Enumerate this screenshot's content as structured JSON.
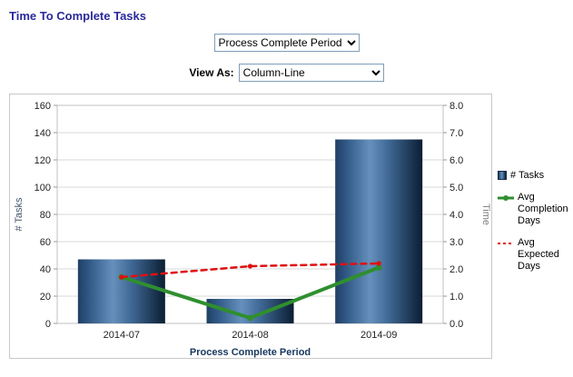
{
  "page": {
    "title": "Time To Complete Tasks",
    "title_color": "#29299a"
  },
  "controls": {
    "period_select": {
      "value": "Process Complete Period"
    },
    "view_as_label": "View As:",
    "view_as_select": {
      "value": "Column-Line"
    }
  },
  "colors": {
    "bar_dark": "#0b1e33",
    "bar_mid": "#1c3c60",
    "bar_light": "#6590bd",
    "line_green": "#2f8f2f",
    "line_red": "#e01010",
    "grid": "#d9d9d9",
    "plot_border": "#c0c0c0",
    "axis_text": "#222222",
    "left_axis_title": "#44546a",
    "right_axis_title": "#808080",
    "x_axis_title": "#17375e"
  },
  "chart_data": {
    "type": "bar",
    "subtype": "column-line-combo",
    "categories": [
      "2014-07",
      "2014-08",
      "2014-09"
    ],
    "series": [
      {
        "name": "# Tasks",
        "type": "bar",
        "axis": "left",
        "values": [
          47,
          18,
          135
        ],
        "color": "#1c3c60"
      },
      {
        "name": "Avg Completion Days",
        "type": "line",
        "axis": "right",
        "values": [
          1.7,
          0.2,
          2.05
        ],
        "color": "#2f8f2f"
      },
      {
        "name": "Avg Expected Days",
        "type": "dashed-line",
        "axis": "right",
        "values": [
          1.7,
          2.1,
          2.2
        ],
        "color": "#e01010"
      }
    ],
    "left_axis": {
      "label": "# Tasks",
      "min": 0,
      "max": 160,
      "step": 20
    },
    "right_axis": {
      "label": "Time",
      "min": 0,
      "max": 8,
      "step": 1,
      "tick_format": "one-decimal"
    },
    "xlabel": "Process Complete Period",
    "grid": true,
    "legend_position": "right"
  }
}
